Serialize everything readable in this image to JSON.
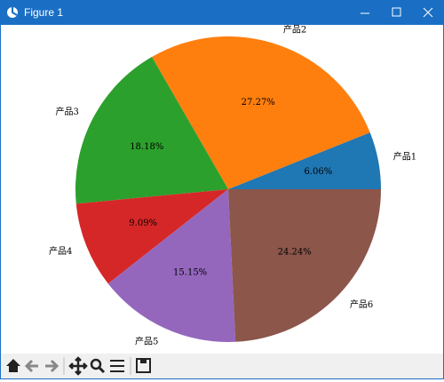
{
  "window_title": "Figure 1",
  "chart_data": {
    "type": "pie",
    "categories": [
      "产品1",
      "产品2",
      "产品3",
      "产品4",
      "产品5",
      "产品6"
    ],
    "values": [
      6.06,
      27.27,
      18.18,
      9.09,
      15.15,
      24.24
    ],
    "value_labels": [
      "6.06%",
      "27.27%",
      "18.18%",
      "9.09%",
      "15.15%",
      "24.24%"
    ],
    "colors": [
      "#1f77b4",
      "#ff7f0e",
      "#2ca02c",
      "#d62728",
      "#9467bd",
      "#8c564b"
    ]
  }
}
